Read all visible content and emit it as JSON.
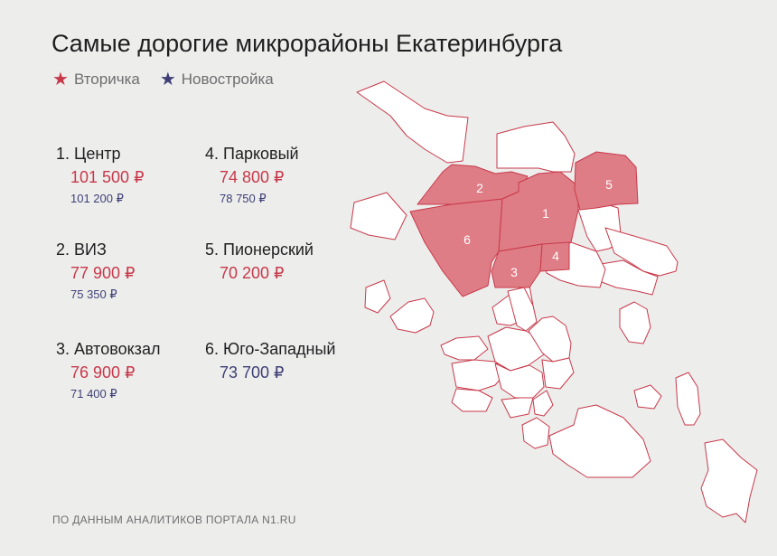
{
  "title": "Самые дорогие микрорайоны Екатеринбурга",
  "legend": {
    "secondary": {
      "label": "Вторичка",
      "color": "#c8394a",
      "icon": "star-icon"
    },
    "newbuild": {
      "label": "Новостройка",
      "color": "#3e3f75",
      "icon": "star-icon"
    }
  },
  "districts": [
    {
      "rank": "1",
      "name": "1. Центр",
      "secondary": "101 500 ₽",
      "newbuild": "101 200 ₽"
    },
    {
      "rank": "2",
      "name": "2. ВИЗ",
      "secondary": "77 900 ₽",
      "newbuild": "75 350 ₽"
    },
    {
      "rank": "3",
      "name": "3. Автовокзал",
      "secondary": "76 900 ₽",
      "newbuild": "71 400 ₽"
    },
    {
      "rank": "4",
      "name": "4. Парковый",
      "secondary": "74 800 ₽",
      "newbuild": "78 750 ₽"
    },
    {
      "rank": "5",
      "name": "5. Пионерский",
      "secondary": "70 200 ₽"
    },
    {
      "rank": "6",
      "name": "6. Юго-Западный",
      "newbuild": "73 700 ₽"
    }
  ],
  "map_labels": [
    "1",
    "2",
    "3",
    "4",
    "5",
    "6"
  ],
  "footer": "ПО ДАННЫМ АНАЛИТИКОВ ПОРТАЛА N1.RU"
}
